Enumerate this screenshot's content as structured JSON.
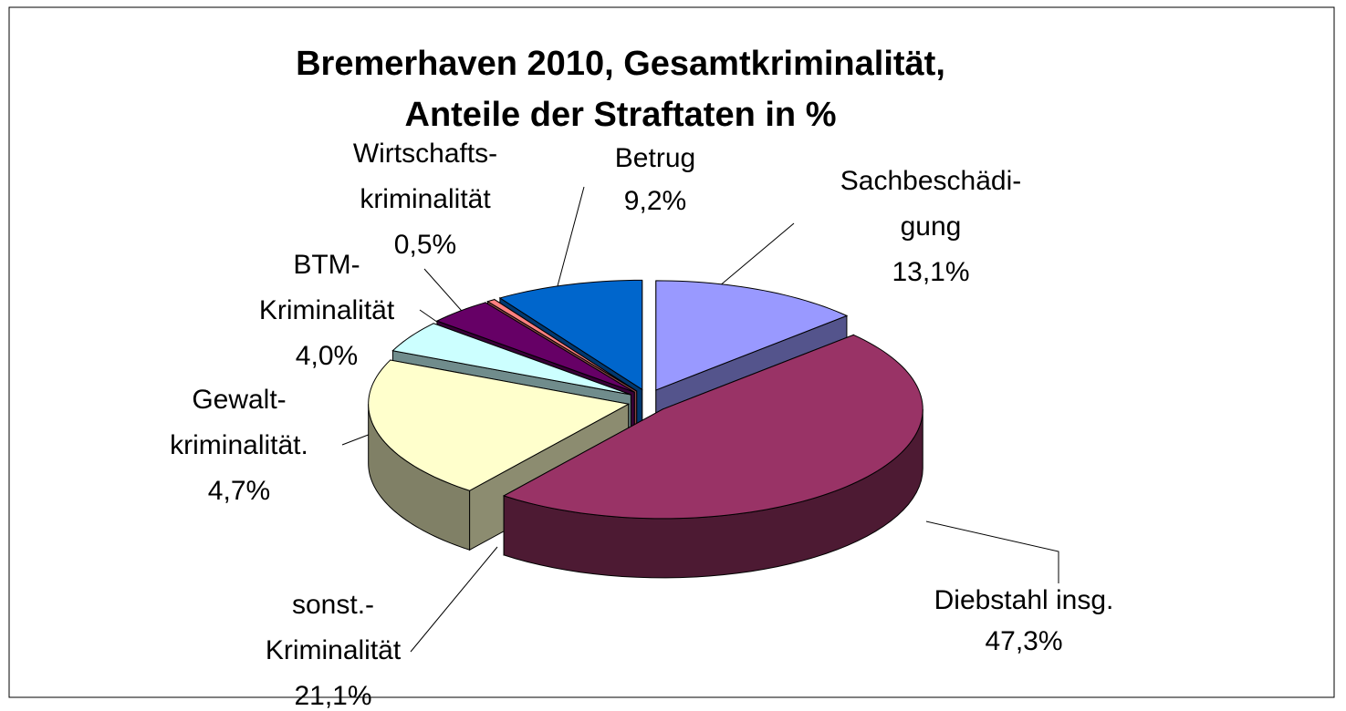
{
  "chart_data": {
    "type": "pie3d",
    "title": [
      "Bremerhaven 2010, Gesamtkriminalität,",
      "Anteile der Straftaten in %"
    ],
    "categories": [
      [
        "Sachbeschädi-",
        "gung"
      ],
      [
        "Diebstahl insg."
      ],
      [
        "sonst.-",
        "Kriminalität"
      ],
      [
        "Gewalt-",
        "kriminalität."
      ],
      [
        "BTM-",
        "Kriminalität"
      ],
      [
        "Wirtschafts-",
        "kriminalität"
      ],
      [
        "Betrug"
      ]
    ],
    "values": [
      13.1,
      47.3,
      21.1,
      4.7,
      4.0,
      0.5,
      9.2
    ],
    "value_labels": [
      "13,1%",
      "47,3%",
      "21,1%",
      "4,7%",
      "4,0%",
      "0,5%",
      "9,2%"
    ],
    "colors": [
      "#9999ff",
      "#993366",
      "#ffffcc",
      "#ccffff",
      "#660066",
      "#ff8080",
      "#0066cc"
    ]
  }
}
